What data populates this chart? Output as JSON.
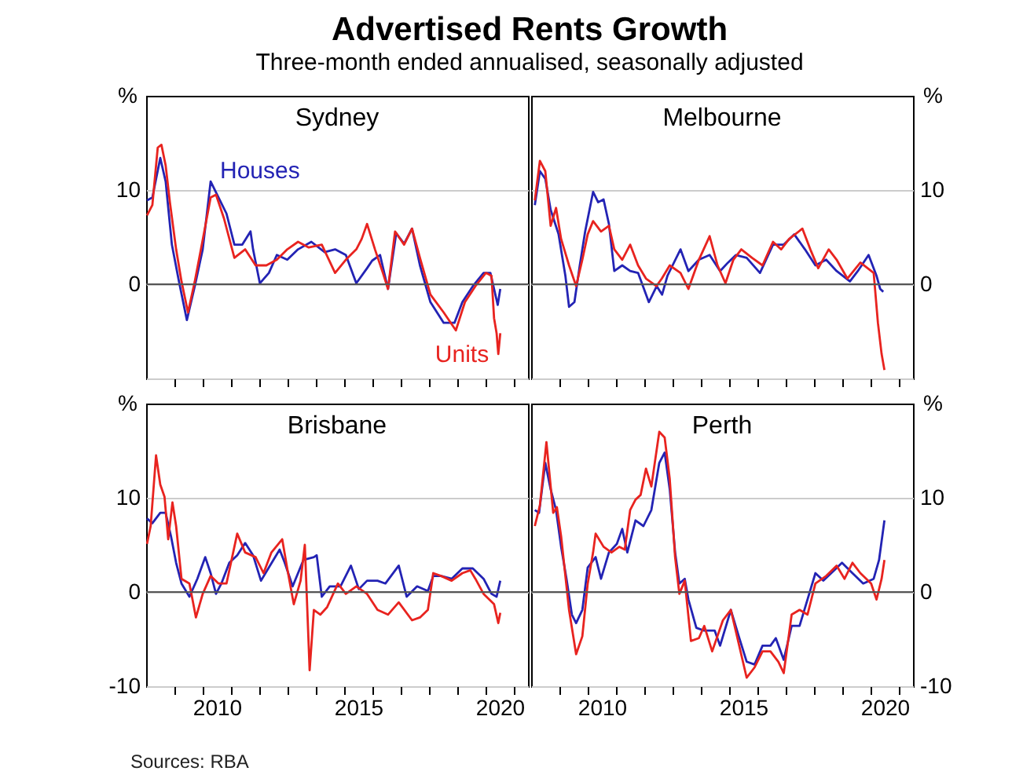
{
  "chart_data": [
    {
      "type": "line",
      "title": "Sydney",
      "ylabel": "%",
      "annotations": [
        "Advertised Rents Growth",
        "Three-month ended annualised, seasonally adjusted"
      ],
      "xlim": [
        2008,
        2021.5
      ],
      "ylim": [
        -10,
        20
      ],
      "xticks": [
        {
          "value": 2009,
          "label": null
        },
        {
          "value": 2010,
          "label": null
        },
        {
          "value": 2011,
          "label": null
        },
        {
          "value": 2012,
          "label": null
        },
        {
          "value": 2013,
          "label": null
        },
        {
          "value": 2014,
          "label": null
        },
        {
          "value": 2015,
          "label": null
        },
        {
          "value": 2016,
          "label": null
        },
        {
          "value": 2017,
          "label": null
        },
        {
          "value": 2018,
          "label": null
        },
        {
          "value": 2019,
          "label": null
        },
        {
          "value": 2020,
          "label": null
        },
        {
          "value": 2021,
          "label": null
        }
      ],
      "yticks": [
        10,
        0,
        {
          "value": -10,
          "label": null
        }
      ],
      "grid": "y",
      "legend": false,
      "tick_labels": "y",
      "line_style": "solid",
      "marker": "none",
      "ref_lines": [
        {
          "axis": "y",
          "value": 0,
          "color": "#555555"
        }
      ],
      "series": [
        {
          "name": "Houses",
          "color": "#2323b4",
          "x": [
            2008.03,
            2008.22,
            2008.5,
            2008.69,
            2008.91,
            2009.16,
            2009.44,
            2009.72,
            2010.0,
            2010.28,
            2010.56,
            2010.84,
            2011.12,
            2011.4,
            2011.69,
            2011.78,
            2012.02,
            2012.34,
            2012.62,
            2012.99,
            2013.37,
            2013.84,
            2014.31,
            2014.68,
            2015.06,
            2015.43,
            2015.81,
            2015.99,
            2016.27,
            2016.55,
            2016.84,
            2017.12,
            2017.4,
            2017.68,
            2018.05,
            2018.52,
            2018.9,
            2019.18,
            2019.55,
            2019.93,
            2020.17,
            2020.3,
            2020.43,
            2020.52
          ],
          "values": [
            8.9,
            9.2,
            13.4,
            10.9,
            4.2,
            0.3,
            -3.8,
            -0.2,
            3.7,
            10.9,
            9.2,
            7.5,
            4.2,
            4.2,
            5.6,
            3.7,
            0.1,
            1.2,
            3.1,
            2.6,
            3.7,
            4.5,
            3.4,
            3.7,
            3.1,
            0.1,
            1.7,
            2.5,
            3.1,
            -0.5,
            5.4,
            4.3,
            5.9,
            2.0,
            -1.9,
            -4.1,
            -4.1,
            -1.9,
            -0.2,
            1.2,
            1.2,
            -0.5,
            -2.2,
            -0.5
          ]
        },
        {
          "name": "Units",
          "color": "#e8231f",
          "x": [
            2008.03,
            2008.22,
            2008.41,
            2008.54,
            2008.69,
            2008.84,
            2009.06,
            2009.25,
            2009.48,
            2009.72,
            2010.0,
            2010.28,
            2010.47,
            2010.75,
            2011.12,
            2011.5,
            2011.87,
            2012.25,
            2012.62,
            2012.99,
            2013.37,
            2013.75,
            2014.21,
            2014.68,
            2015.06,
            2015.43,
            2015.62,
            2015.81,
            2016.09,
            2016.37,
            2016.55,
            2016.8,
            2017.12,
            2017.4,
            2017.68,
            2018.05,
            2018.52,
            2018.95,
            2019.27,
            2019.64,
            2020.01,
            2020.21,
            2020.3,
            2020.39,
            2020.45,
            2020.52
          ],
          "values": [
            7.3,
            8.4,
            14.5,
            14.8,
            12.6,
            8.7,
            3.7,
            0.3,
            -3.0,
            0.3,
            4.7,
            9.2,
            9.5,
            7.0,
            2.8,
            3.7,
            2.0,
            2.0,
            2.6,
            3.7,
            4.5,
            3.9,
            4.2,
            1.2,
            2.6,
            3.7,
            4.8,
            6.4,
            3.7,
            1.2,
            -0.5,
            5.6,
            4.2,
            5.9,
            2.8,
            -1.1,
            -3.0,
            -4.9,
            -1.9,
            -0.2,
            1.2,
            0.9,
            -3.6,
            -5.2,
            -7.4,
            -5.2
          ]
        }
      ]
    },
    {
      "type": "line",
      "title": "Melbourne",
      "ylabel": "%",
      "xlim": [
        2008,
        2021.5
      ],
      "ylim": [
        -10,
        20
      ],
      "xticks": [
        {
          "value": 2009,
          "label": null
        },
        {
          "value": 2010,
          "label": null
        },
        {
          "value": 2011,
          "label": null
        },
        {
          "value": 2012,
          "label": null
        },
        {
          "value": 2013,
          "label": null
        },
        {
          "value": 2014,
          "label": null
        },
        {
          "value": 2015,
          "label": null
        },
        {
          "value": 2016,
          "label": null
        },
        {
          "value": 2017,
          "label": null
        },
        {
          "value": 2018,
          "label": null
        },
        {
          "value": 2019,
          "label": null
        },
        {
          "value": 2020,
          "label": null
        },
        {
          "value": 2021,
          "label": null
        }
      ],
      "yticks": [
        10,
        0,
        {
          "value": -10,
          "label": null
        }
      ],
      "grid": "y",
      "legend": false,
      "tick_labels": "y",
      "line_style": "solid",
      "marker": "none",
      "ref_lines": [
        {
          "axis": "y",
          "value": 0,
          "color": "#555555"
        }
      ],
      "series": [
        {
          "color": "#2323b4",
          "x": [
            2008.13,
            2008.31,
            2008.5,
            2008.69,
            2008.97,
            2009.21,
            2009.34,
            2009.53,
            2009.72,
            2009.91,
            2010.19,
            2010.37,
            2010.56,
            2010.75,
            2010.94,
            2011.22,
            2011.5,
            2011.78,
            2012.16,
            2012.44,
            2012.63,
            2012.82,
            2013.0,
            2013.28,
            2013.56,
            2013.93,
            2014.31,
            2014.68,
            2014.96,
            2015.24,
            2015.62,
            2016.09,
            2016.55,
            2016.93,
            2017.3,
            2017.68,
            2018.05,
            2018.43,
            2018.8,
            2019.27,
            2019.55,
            2019.93,
            2020.21,
            2020.34,
            2020.45
          ],
          "values": [
            8.4,
            12.0,
            11.2,
            7.9,
            5.3,
            0.9,
            -2.4,
            -1.9,
            2.0,
            5.6,
            9.8,
            8.7,
            9.0,
            6.4,
            1.4,
            2.0,
            1.4,
            1.2,
            -1.9,
            -0.2,
            -1.1,
            0.9,
            2.0,
            3.7,
            1.4,
            2.6,
            3.1,
            1.4,
            2.3,
            3.1,
            2.8,
            1.2,
            4.2,
            4.2,
            5.3,
            3.7,
            2.0,
            2.6,
            1.4,
            0.3,
            1.4,
            3.1,
            0.9,
            -0.5,
            -0.8
          ]
        },
        {
          "color": "#e8231f",
          "x": [
            2008.13,
            2008.31,
            2008.5,
            2008.69,
            2008.88,
            2009.06,
            2009.34,
            2009.59,
            2009.81,
            2010.0,
            2010.19,
            2010.47,
            2010.75,
            2010.94,
            2011.22,
            2011.5,
            2011.78,
            2012.06,
            2012.43,
            2012.62,
            2012.9,
            2013.28,
            2013.56,
            2013.93,
            2014.31,
            2014.59,
            2014.87,
            2015.15,
            2015.43,
            2015.81,
            2016.18,
            2016.55,
            2016.84,
            2017.12,
            2017.59,
            2017.87,
            2018.15,
            2018.52,
            2018.8,
            2019.18,
            2019.64,
            2020.11,
            2020.26,
            2020.39,
            2020.49
          ],
          "values": [
            8.9,
            13.1,
            12.0,
            6.2,
            8.1,
            4.8,
            2.0,
            -0.2,
            2.6,
            5.3,
            6.7,
            5.6,
            6.2,
            3.7,
            2.6,
            4.2,
            2.0,
            0.6,
            -0.2,
            0.6,
            2.0,
            1.2,
            -0.5,
            2.6,
            5.1,
            2.0,
            0.1,
            2.6,
            3.7,
            2.8,
            2.0,
            4.5,
            3.7,
            4.8,
            5.9,
            3.7,
            1.7,
            3.7,
            2.6,
            0.6,
            2.3,
            1.2,
            -4.1,
            -7.4,
            -9.1
          ]
        }
      ]
    },
    {
      "type": "line",
      "title": "Brisbane",
      "ylabel": "%",
      "annotations": [
        "Sources: RBA"
      ],
      "xlim": [
        2008,
        2021.5
      ],
      "ylim": [
        -10,
        20
      ],
      "xticks": [
        {
          "value": 2009,
          "label": null
        },
        {
          "value": 2010,
          "label": null
        },
        {
          "value": 2010.5,
          "label": "2010"
        },
        {
          "value": 2011,
          "label": null
        },
        {
          "value": 2012,
          "label": null
        },
        {
          "value": 2013,
          "label": null
        },
        {
          "value": 2014,
          "label": null
        },
        {
          "value": 2015,
          "label": null
        },
        {
          "value": 2015.5,
          "label": "2015"
        },
        {
          "value": 2016,
          "label": null
        },
        {
          "value": 2017,
          "label": null
        },
        {
          "value": 2018,
          "label": null
        },
        {
          "value": 2019,
          "label": null
        },
        {
          "value": 2020,
          "label": null
        },
        {
          "value": 2020.5,
          "label": "2020"
        },
        {
          "value": 2021,
          "label": null
        }
      ],
      "yticks": [
        10,
        0,
        -10
      ],
      "grid": "y",
      "legend": false,
      "line_style": "solid",
      "marker": "none",
      "ref_lines": [
        {
          "axis": "y",
          "value": 0,
          "color": "#555555"
        }
      ],
      "series": [
        {
          "color": "#2323b4",
          "x": [
            2008.03,
            2008.22,
            2008.5,
            2008.69,
            2008.88,
            2009.06,
            2009.25,
            2009.53,
            2009.81,
            2010.09,
            2010.28,
            2010.47,
            2010.66,
            2010.94,
            2011.22,
            2011.5,
            2011.78,
            2012.06,
            2012.34,
            2012.72,
            2012.9,
            2013.18,
            2013.56,
            2013.93,
            2014.03,
            2014.21,
            2014.49,
            2014.87,
            2015.24,
            2015.52,
            2015.81,
            2016.18,
            2016.46,
            2016.93,
            2017.21,
            2017.58,
            2017.96,
            2018.15,
            2018.43,
            2018.8,
            2019.18,
            2019.55,
            2019.93,
            2020.21,
            2020.39,
            2020.52
          ],
          "values": [
            7.8,
            7.3,
            8.4,
            8.4,
            5.9,
            3.1,
            0.9,
            -0.5,
            1.4,
            3.7,
            2.0,
            -0.2,
            0.9,
            3.1,
            3.9,
            5.2,
            3.9,
            1.2,
            2.6,
            4.5,
            3.1,
            0.6,
            3.4,
            3.7,
            3.9,
            -0.5,
            0.6,
            0.6,
            2.8,
            0.3,
            1.2,
            1.2,
            0.9,
            2.8,
            -0.5,
            0.6,
            0.1,
            1.7,
            1.7,
            1.4,
            2.5,
            2.5,
            1.4,
            -0.2,
            -0.5,
            1.2
          ]
        },
        {
          "color": "#e8231f",
          "x": [
            2008.03,
            2008.16,
            2008.35,
            2008.5,
            2008.65,
            2008.78,
            2008.93,
            2009.06,
            2009.25,
            2009.53,
            2009.76,
            2010.0,
            2010.28,
            2010.56,
            2010.84,
            2011.22,
            2011.5,
            2011.87,
            2012.15,
            2012.43,
            2012.81,
            2013.0,
            2013.22,
            2013.46,
            2013.61,
            2013.78,
            2013.93,
            2014.16,
            2014.4,
            2014.78,
            2015.06,
            2015.43,
            2015.81,
            2016.18,
            2016.55,
            2016.93,
            2017.4,
            2017.68,
            2017.96,
            2018.15,
            2018.43,
            2018.8,
            2019.18,
            2019.46,
            2019.64,
            2019.93,
            2020.3,
            2020.45,
            2020.52
          ],
          "values": [
            5.1,
            7.0,
            14.5,
            11.4,
            10.1,
            5.6,
            9.5,
            7.0,
            1.4,
            0.9,
            -2.7,
            -0.2,
            1.7,
            0.9,
            0.9,
            6.2,
            4.2,
            3.7,
            2.0,
            4.2,
            5.6,
            2.3,
            -1.3,
            1.2,
            5.0,
            -8.3,
            -1.9,
            -2.4,
            -1.6,
            0.9,
            -0.2,
            0.6,
            -0.2,
            -1.9,
            -2.4,
            -1.1,
            -3.0,
            -2.7,
            -1.9,
            2.0,
            1.7,
            1.2,
            2.0,
            2.3,
            1.4,
            -0.2,
            -1.3,
            -3.3,
            -2.2
          ]
        }
      ]
    },
    {
      "type": "line",
      "title": "Perth",
      "ylabel": "%",
      "xlim": [
        2008,
        2021.5
      ],
      "ylim": [
        -10,
        20
      ],
      "xticks": [
        {
          "value": 2009,
          "label": null
        },
        {
          "value": 2010,
          "label": null
        },
        {
          "value": 2010.5,
          "label": "2010"
        },
        {
          "value": 2011,
          "label": null
        },
        {
          "value": 2012,
          "label": null
        },
        {
          "value": 2013,
          "label": null
        },
        {
          "value": 2014,
          "label": null
        },
        {
          "value": 2015,
          "label": null
        },
        {
          "value": 2015.5,
          "label": "2015"
        },
        {
          "value": 2016,
          "label": null
        },
        {
          "value": 2017,
          "label": null
        },
        {
          "value": 2018,
          "label": null
        },
        {
          "value": 2019,
          "label": null
        },
        {
          "value": 2020,
          "label": null
        },
        {
          "value": 2020.5,
          "label": "2020"
        },
        {
          "value": 2021,
          "label": null
        }
      ],
      "yticks": [
        10,
        0,
        -10
      ],
      "grid": "y",
      "legend": false,
      "line_style": "solid",
      "marker": "none",
      "ref_lines": [
        {
          "axis": "y",
          "value": 0,
          "color": "#555555"
        }
      ],
      "series": [
        {
          "color": "#2323b4",
          "x": [
            2008.13,
            2008.28,
            2008.5,
            2008.69,
            2008.88,
            2009.06,
            2009.25,
            2009.44,
            2009.59,
            2009.81,
            2010.0,
            2010.28,
            2010.47,
            2010.75,
            2011.03,
            2011.22,
            2011.4,
            2011.69,
            2011.97,
            2012.25,
            2012.53,
            2012.72,
            2012.9,
            2013.09,
            2013.24,
            2013.43,
            2013.56,
            2013.84,
            2014.12,
            2014.49,
            2014.68,
            2015.06,
            2015.34,
            2015.62,
            2015.9,
            2016.18,
            2016.46,
            2016.65,
            2016.93,
            2017.21,
            2017.49,
            2017.77,
            2018.05,
            2018.33,
            2018.71,
            2018.99,
            2019.36,
            2019.74,
            2020.11,
            2020.3,
            2020.49
          ],
          "values": [
            8.7,
            8.4,
            13.7,
            10.9,
            8.7,
            4.8,
            1.4,
            -2.4,
            -3.3,
            -1.9,
            2.6,
            3.7,
            1.4,
            4.2,
            5.1,
            6.7,
            4.2,
            7.6,
            7.0,
            8.7,
            13.7,
            14.8,
            10.9,
            4.2,
            0.9,
            1.4,
            -0.8,
            -3.8,
            -4.1,
            -4.1,
            -5.7,
            -1.9,
            -4.7,
            -7.4,
            -7.7,
            -5.7,
            -5.7,
            -4.9,
            -7.2,
            -3.6,
            -3.6,
            -0.8,
            2.0,
            1.2,
            2.3,
            3.1,
            2.0,
            0.9,
            1.4,
            3.4,
            7.6
          ]
        },
        {
          "color": "#e8231f",
          "x": [
            2008.13,
            2008.31,
            2008.54,
            2008.78,
            2008.91,
            2009.06,
            2009.34,
            2009.59,
            2009.81,
            2010.0,
            2010.19,
            2010.28,
            2010.56,
            2010.84,
            2011.12,
            2011.31,
            2011.5,
            2011.69,
            2011.87,
            2012.06,
            2012.25,
            2012.53,
            2012.72,
            2012.9,
            2013.09,
            2013.24,
            2013.43,
            2013.65,
            2013.93,
            2014.12,
            2014.4,
            2014.78,
            2015.06,
            2015.34,
            2015.62,
            2015.9,
            2016.18,
            2016.46,
            2016.74,
            2016.93,
            2017.21,
            2017.49,
            2017.77,
            2018.05,
            2018.43,
            2018.8,
            2019.08,
            2019.36,
            2019.64,
            2020.02,
            2020.21,
            2020.39,
            2020.49
          ],
          "values": [
            7.0,
            9.2,
            15.9,
            8.4,
            9.0,
            5.9,
            -1.9,
            -6.6,
            -4.7,
            0.9,
            4.2,
            6.2,
            4.8,
            4.2,
            4.8,
            4.5,
            8.7,
            9.8,
            10.3,
            13.1,
            11.2,
            17.0,
            16.4,
            12.0,
            3.7,
            -0.2,
            1.2,
            -5.2,
            -4.9,
            -3.6,
            -6.3,
            -3.0,
            -1.9,
            -5.5,
            -9.1,
            -8.0,
            -6.3,
            -6.3,
            -7.4,
            -8.6,
            -2.4,
            -1.9,
            -2.4,
            0.9,
            1.7,
            2.8,
            1.4,
            3.1,
            2.0,
            0.9,
            -0.8,
            1.4,
            3.4
          ]
        }
      ]
    }
  ]
}
